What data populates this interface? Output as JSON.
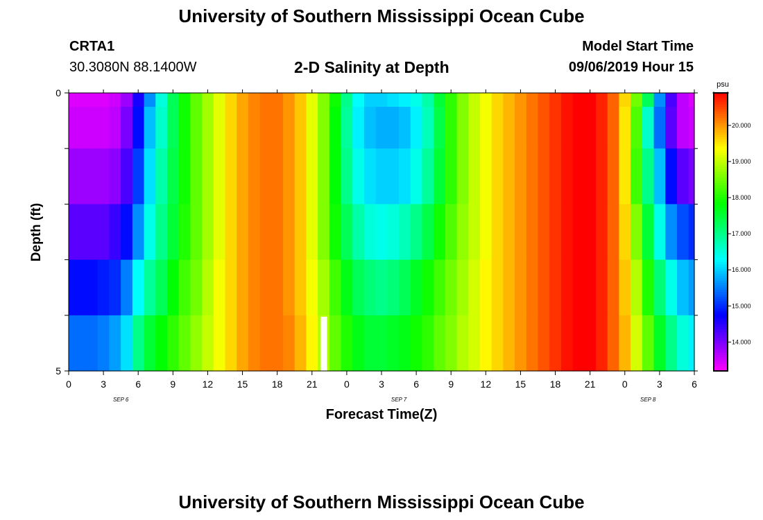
{
  "header": {
    "title_top": "University of Southern Mississippi Ocean Cube",
    "title_bottom": "University of Southern Mississippi Ocean Cube",
    "station_id": "CRTA1",
    "station_coords": "30.3080N 88.1400W",
    "plot_title": "2-D Salinity at Depth",
    "model_start_label": "Model Start Time",
    "model_start_value": "09/06/2019 Hour 15"
  },
  "chart_data": {
    "type": "heatmap",
    "title": "2-D Salinity at Depth",
    "xlabel": "Forecast Time(Z)",
    "ylabel": "Depth (ft)",
    "x_tick_labels": [
      "0",
      "3",
      "6",
      "9",
      "12",
      "15",
      "18",
      "21",
      "0",
      "3",
      "6",
      "9",
      "12",
      "15",
      "18",
      "21",
      "0",
      "3",
      "6"
    ],
    "x_range_hours": [
      0,
      54
    ],
    "day_labels": [
      "SEP 6",
      "SEP 7",
      "SEP 8"
    ],
    "y_tick_labels": [
      "0",
      "5"
    ],
    "y_range_ft": [
      0,
      5
    ],
    "depth_levels_ft": [
      0,
      0.5,
      1.5,
      2.5,
      3.5,
      4.5
    ],
    "colorbar": {
      "unit": "psu",
      "min": 13.2,
      "max": 20.9,
      "tick_labels": [
        "14.000",
        "15.000",
        "16.000",
        "17.000",
        "18.000",
        "19.000",
        "20.000"
      ]
    },
    "time_hours": [
      0,
      1,
      2,
      3,
      4,
      5,
      6,
      7,
      8,
      9,
      10,
      11,
      12,
      13,
      14,
      15,
      16,
      17,
      18,
      19,
      20,
      21,
      22,
      23,
      24,
      25,
      26,
      27,
      28,
      29,
      30,
      31,
      32,
      33,
      34,
      35,
      36,
      37,
      38,
      39,
      40,
      41,
      42,
      43,
      44,
      45,
      46,
      47,
      48,
      49,
      50,
      51,
      52,
      53,
      54
    ],
    "salinity_rows": [
      [
        13.4,
        13.4,
        13.4,
        13.4,
        13.5,
        13.8,
        14.6,
        15.6,
        16.5,
        17.3,
        17.9,
        18.4,
        18.8,
        19.2,
        19.6,
        19.9,
        20.1,
        20.2,
        20.2,
        20.0,
        19.7,
        19.2,
        18.6,
        17.9,
        17.0,
        16.3,
        16.0,
        16.0,
        16.1,
        16.2,
        16.4,
        16.8,
        17.5,
        18.1,
        18.6,
        19.0,
        19.3,
        19.6,
        19.8,
        20.0,
        20.2,
        20.4,
        20.6,
        20.8,
        20.9,
        20.9,
        20.7,
        20.3,
        19.6,
        18.5,
        17.3,
        15.6,
        14.3,
        13.6,
        13.4
      ],
      [
        13.5,
        13.5,
        13.5,
        13.5,
        13.6,
        14.0,
        14.8,
        15.9,
        16.6,
        17.3,
        17.9,
        18.4,
        18.8,
        19.2,
        19.6,
        19.9,
        20.1,
        20.2,
        20.2,
        20.0,
        19.7,
        19.2,
        18.6,
        17.8,
        16.9,
        16.2,
        15.9,
        15.8,
        15.8,
        15.9,
        16.2,
        16.7,
        17.4,
        18.1,
        18.6,
        19.0,
        19.3,
        19.6,
        19.8,
        20.0,
        20.2,
        20.4,
        20.6,
        20.8,
        20.9,
        20.9,
        20.7,
        20.3,
        19.5,
        18.3,
        16.6,
        15.4,
        14.2,
        13.6,
        13.5
      ],
      [
        13.8,
        13.8,
        13.8,
        13.8,
        13.9,
        14.3,
        15.1,
        16.1,
        16.8,
        17.4,
        17.9,
        18.4,
        18.8,
        19.2,
        19.6,
        19.9,
        20.1,
        20.2,
        20.2,
        20.0,
        19.7,
        19.2,
        18.6,
        17.8,
        17.0,
        16.4,
        16.1,
        16.0,
        16.0,
        16.1,
        16.4,
        16.9,
        17.5,
        18.1,
        18.6,
        19.0,
        19.3,
        19.6,
        19.8,
        20.0,
        20.2,
        20.4,
        20.6,
        20.8,
        20.9,
        20.9,
        20.7,
        20.3,
        19.5,
        18.2,
        17.0,
        15.9,
        14.8,
        14.2,
        14.0
      ],
      [
        14.2,
        14.2,
        14.2,
        14.2,
        14.4,
        14.8,
        15.6,
        16.4,
        17.0,
        17.5,
        18.0,
        18.4,
        18.8,
        19.2,
        19.6,
        19.9,
        20.1,
        20.2,
        20.2,
        20.0,
        19.7,
        19.2,
        18.6,
        17.9,
        17.3,
        16.8,
        16.5,
        16.4,
        16.5,
        16.7,
        17.0,
        17.4,
        17.9,
        18.3,
        18.7,
        19.0,
        19.3,
        19.6,
        19.8,
        20.0,
        20.2,
        20.4,
        20.6,
        20.8,
        20.9,
        20.9,
        20.7,
        20.3,
        19.6,
        18.6,
        17.5,
        16.4,
        15.6,
        15.2,
        15.0
      ],
      [
        14.8,
        14.8,
        14.8,
        14.9,
        15.0,
        15.5,
        16.3,
        16.9,
        17.3,
        17.8,
        18.2,
        18.5,
        18.9,
        19.3,
        19.6,
        19.9,
        20.1,
        20.2,
        20.2,
        20.0,
        19.7,
        19.3,
        18.8,
        18.2,
        17.7,
        17.3,
        17.1,
        17.0,
        17.1,
        17.3,
        17.6,
        17.9,
        18.2,
        18.5,
        18.8,
        19.1,
        19.4,
        19.6,
        19.8,
        20.0,
        20.2,
        20.4,
        20.6,
        20.8,
        20.9,
        20.9,
        20.7,
        20.3,
        19.7,
        18.9,
        18.0,
        17.1,
        16.4,
        15.9,
        15.7
      ],
      [
        15.4,
        15.4,
        15.4,
        15.5,
        15.7,
        16.1,
        17.0,
        17.5,
        17.8,
        18.1,
        18.4,
        18.7,
        19.0,
        19.3,
        19.6,
        19.9,
        20.1,
        20.2,
        20.2,
        20.1,
        19.8,
        19.4,
        18.9,
        18.4,
        18.0,
        17.7,
        17.5,
        17.5,
        17.6,
        17.7,
        17.9,
        18.1,
        18.4,
        18.6,
        18.9,
        19.1,
        19.4,
        19.6,
        19.8,
        20.0,
        20.2,
        20.4,
        20.6,
        20.8,
        20.9,
        20.9,
        20.7,
        20.3,
        19.8,
        19.1,
        18.4,
        17.6,
        17.0,
        16.5,
        16.2
      ]
    ],
    "missing_cell": {
      "hour": 22,
      "depth_ft": 4.5
    }
  }
}
